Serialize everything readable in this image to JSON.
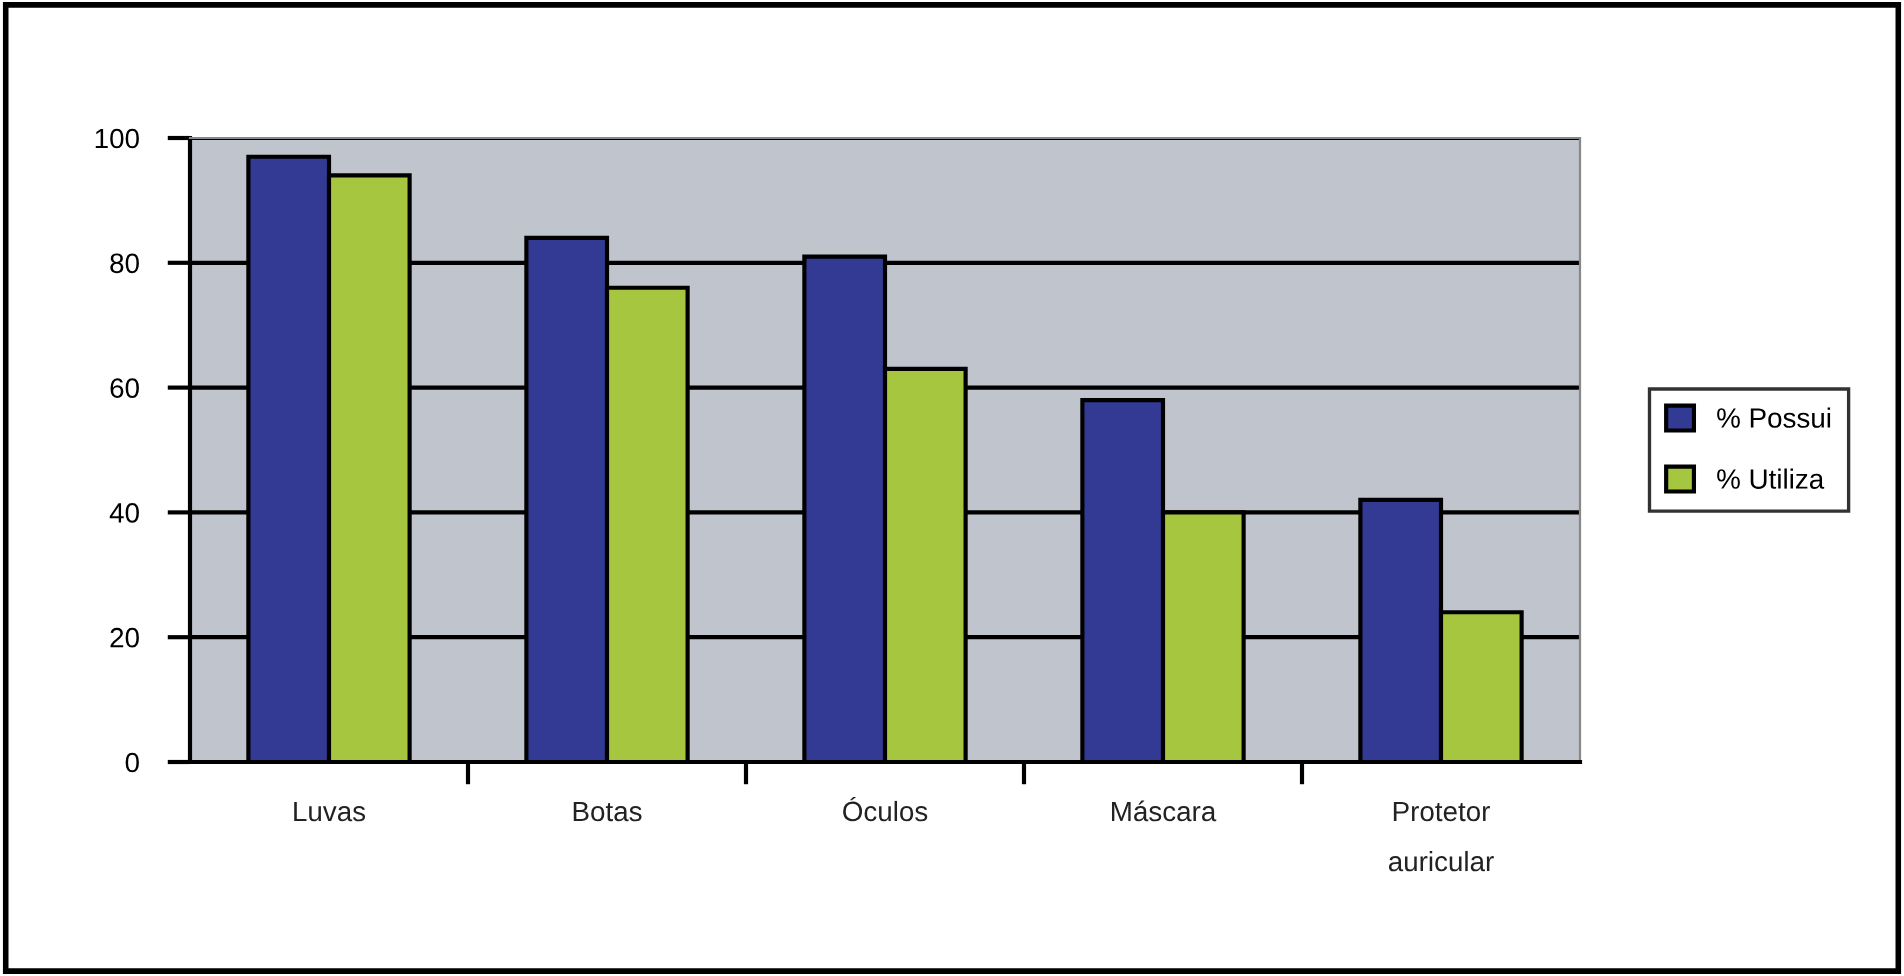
{
  "chart_data": {
    "type": "bar",
    "categories": [
      "Luvas",
      "Botas",
      "Óculos",
      "Máscara",
      "Protetor\nauricular"
    ],
    "series": [
      {
        "name": "% Possui",
        "color": "#333a94",
        "values": [
          97,
          84,
          81,
          58,
          42
        ]
      },
      {
        "name": "% Utiliza",
        "color": "#a6c63f",
        "values": [
          94,
          76,
          63,
          40,
          24
        ]
      }
    ],
    "ylim": [
      0,
      100
    ],
    "yticks": [
      0,
      20,
      40,
      60,
      80,
      100
    ],
    "grid": "y",
    "legend": "right"
  }
}
